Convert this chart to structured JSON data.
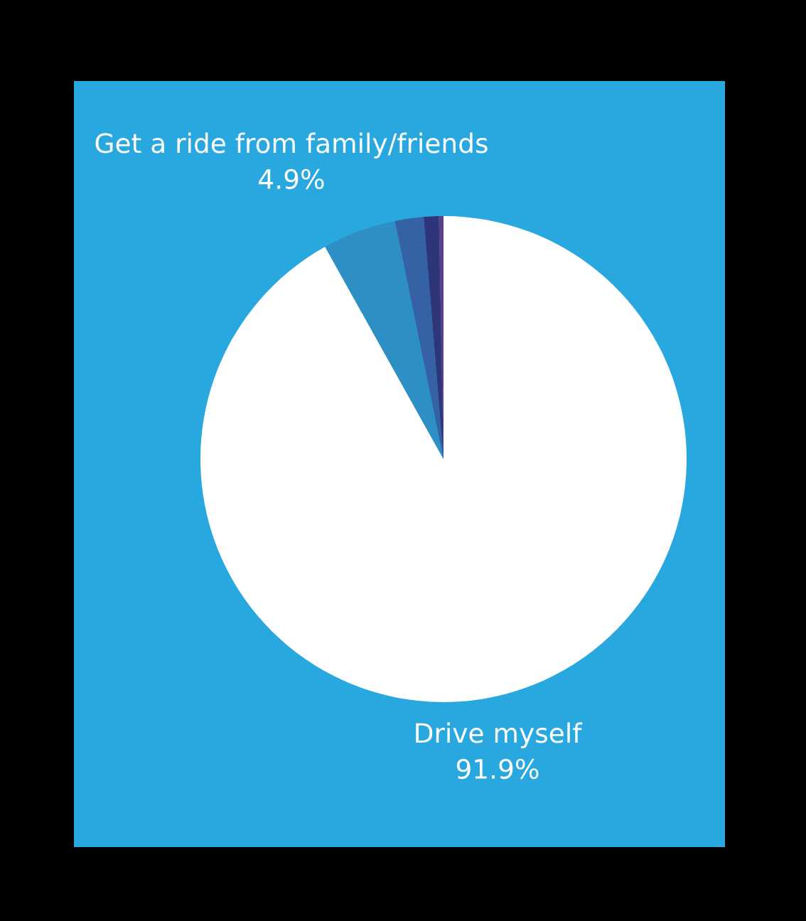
{
  "chart_data": {
    "type": "pie",
    "categories": [
      "Drive myself",
      "Get a ride from family/friends",
      null,
      null,
      null
    ],
    "values": [
      91.9,
      4.9,
      1.9,
      1.0,
      0.3
    ],
    "colors": [
      "#ffffff",
      "#2e8fc4",
      "#3561a5",
      "#2e3578",
      "#5b3f88"
    ],
    "value_labels": [
      "91.9%",
      "4.9%",
      null,
      null,
      null
    ]
  }
}
